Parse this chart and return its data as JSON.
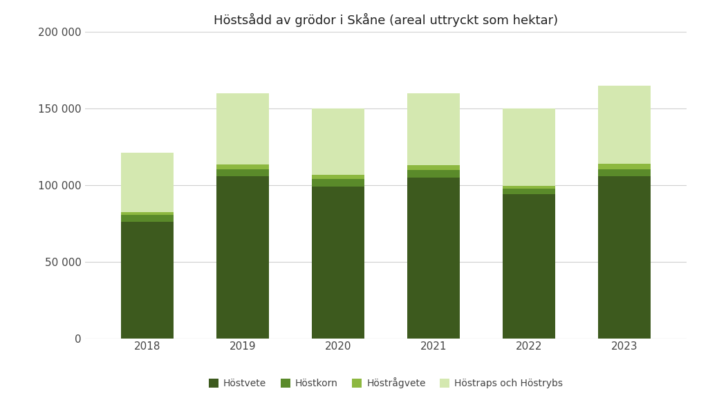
{
  "years": [
    "2018",
    "2019",
    "2020",
    "2021",
    "2022",
    "2023"
  ],
  "hostvete": [
    76000,
    106000,
    99000,
    105000,
    94000,
    106000
  ],
  "hostkorn": [
    4500,
    4500,
    5000,
    5000,
    3500,
    4500
  ],
  "hostrågvete": [
    2000,
    3000,
    2500,
    3000,
    2000,
    3500
  ],
  "hostraps": [
    38500,
    46500,
    43500,
    47000,
    50500,
    51000
  ],
  "colors": {
    "hostvete": "#3d5a1e",
    "hostkorn": "#5a8a2a",
    "hostrågvete": "#8db840",
    "hostraps": "#d4e8b0"
  },
  "labels": {
    "hostvete": "Höstvete",
    "hostkorn": "Höstkorn",
    "hostrågvete": "Höstrågvete",
    "hostraps": "Höstraps och Höstrybs"
  },
  "title": "Höstsådd av grödor i Skåne (areal uttryckt som hektar)",
  "ylim": [
    0,
    200000
  ],
  "yticks": [
    0,
    50000,
    100000,
    150000,
    200000
  ],
  "background_color": "#ffffff",
  "grid_color": "#d0d0d0",
  "title_fontsize": 13,
  "tick_fontsize": 11,
  "legend_fontsize": 10,
  "bar_width": 0.55
}
